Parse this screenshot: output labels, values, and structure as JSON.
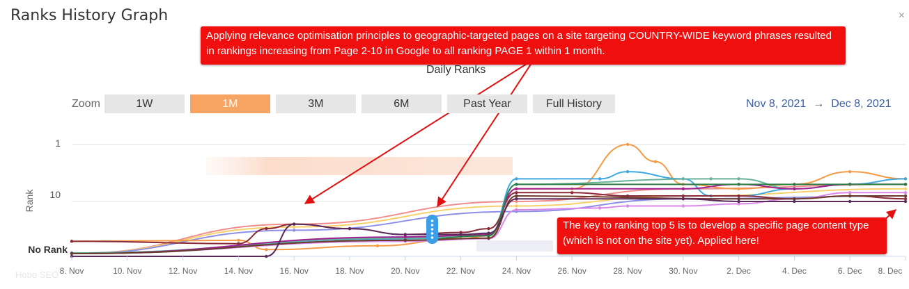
{
  "header": {
    "title": "Ranks History Graph",
    "close_icon": "close-icon"
  },
  "chart": {
    "subtitle": "Daily Ranks"
  },
  "zoom": {
    "label": "Zoom",
    "buttons": [
      "1W",
      "1M",
      "3M",
      "6M",
      "Past Year",
      "Full History"
    ],
    "active": "1M"
  },
  "range": {
    "start": "Nov 8, 2021",
    "arrow": "→",
    "end": "Dec 8, 2021"
  },
  "annotations": {
    "top": "Applying relevance optimisation principles to geographic-targeted pages on a site targeting COUNTRY-WIDE keyword phrases resulted in rankings increasing from Page 2-10 in Google to all ranking PAGE 1 within 1 month.",
    "bottom": "The key to ranking top 5 is to develop a specific page content type (which is not on the site yet). Applied here!"
  },
  "watermark": "Hobo SEO",
  "colors": {
    "annotation_bg": "#ef0f0f",
    "active_zoom": "#f7a462",
    "range_text": "#3d5fa8"
  },
  "chart_data": {
    "type": "line",
    "title": "Daily Ranks",
    "ylabel": "Rank",
    "y_scale": "log-inverted",
    "y_ticks": [
      "1",
      "10",
      "No Rank"
    ],
    "x_ticks": [
      "8. Nov",
      "10. Nov",
      "12. Nov",
      "14. Nov",
      "16. Nov",
      "18. Nov",
      "20. Nov",
      "22. Nov",
      "24. Nov",
      "26. Nov",
      "28. Nov",
      "30. Nov",
      "2. Dec",
      "4. Dec",
      "6. Dec",
      "8. Dec"
    ],
    "x_start": "2021-11-08",
    "x_end": "2021-12-08",
    "series": [
      {
        "color": "#f08c8c",
        "points": [
          [
            "2021-11-08",
            90
          ],
          [
            "2021-11-16",
            25
          ],
          [
            "2021-11-24",
            10
          ],
          [
            "2021-11-30",
            6
          ],
          [
            "2021-12-08",
            5
          ]
        ]
      },
      {
        "color": "#f7d06b",
        "points": [
          [
            "2021-11-08",
            90
          ],
          [
            "2021-11-16",
            28
          ],
          [
            "2021-11-24",
            12
          ],
          [
            "2021-11-30",
            8
          ],
          [
            "2021-12-08",
            6
          ]
        ]
      },
      {
        "color": "#8d8ee6",
        "points": [
          [
            "2021-11-08",
            90
          ],
          [
            "2021-11-16",
            32
          ],
          [
            "2021-11-24",
            15
          ],
          [
            "2021-11-30",
            9
          ],
          [
            "2021-12-08",
            8
          ]
        ]
      },
      {
        "color": "#f49a45",
        "points": [
          [
            "2021-11-08",
            50
          ],
          [
            "2021-11-14",
            48
          ],
          [
            "2021-11-15",
            70
          ],
          [
            "2021-11-19",
            60
          ],
          [
            "2021-11-22",
            45
          ],
          [
            "2021-11-23",
            40
          ],
          [
            "2021-11-24",
            6
          ],
          [
            "2021-11-26",
            6
          ],
          [
            "2021-11-28",
            1
          ],
          [
            "2021-11-29",
            2
          ],
          [
            "2021-11-30",
            5
          ],
          [
            "2021-12-02",
            6
          ],
          [
            "2021-12-04",
            5
          ],
          [
            "2021-12-06",
            3
          ],
          [
            "2021-12-08",
            4
          ]
        ]
      },
      {
        "color": "#40a8e0",
        "points": [
          [
            "2021-11-08",
            80
          ],
          [
            "2021-11-20",
            45
          ],
          [
            "2021-11-23",
            40
          ],
          [
            "2021-11-24",
            4
          ],
          [
            "2021-11-27",
            4
          ],
          [
            "2021-11-28",
            3
          ],
          [
            "2021-11-30",
            4
          ],
          [
            "2021-12-01",
            8
          ],
          [
            "2021-12-02",
            8
          ],
          [
            "2021-12-04",
            6
          ],
          [
            "2021-12-06",
            5
          ],
          [
            "2021-12-08",
            4
          ]
        ]
      },
      {
        "color": "#66b39a",
        "points": [
          [
            "2021-11-08",
            80
          ],
          [
            "2021-11-20",
            44
          ],
          [
            "2021-11-23",
            40
          ],
          [
            "2021-11-24",
            5
          ],
          [
            "2021-12-01",
            4
          ],
          [
            "2021-12-02",
            4
          ],
          [
            "2021-12-04",
            6
          ],
          [
            "2021-12-06",
            5
          ],
          [
            "2021-12-08",
            5
          ]
        ]
      },
      {
        "color": "#8a2b3a",
        "points": [
          [
            "2021-11-08",
            50
          ],
          [
            "2021-11-14",
            55
          ],
          [
            "2021-11-15",
            30
          ],
          [
            "2021-11-16",
            25
          ],
          [
            "2021-11-18",
            30
          ],
          [
            "2021-11-20",
            38
          ],
          [
            "2021-11-22",
            35
          ],
          [
            "2021-11-23",
            30
          ],
          [
            "2021-11-24",
            7
          ],
          [
            "2021-11-26",
            7
          ],
          [
            "2021-11-28",
            8
          ],
          [
            "2021-11-30",
            8
          ],
          [
            "2021-12-02",
            8
          ],
          [
            "2021-12-04",
            9
          ],
          [
            "2021-12-06",
            8
          ],
          [
            "2021-12-08",
            9
          ]
        ]
      },
      {
        "color": "#a02090",
        "points": [
          [
            "2021-11-08",
            90
          ],
          [
            "2021-11-20",
            42
          ],
          [
            "2021-11-23",
            38
          ],
          [
            "2021-11-24",
            6
          ],
          [
            "2021-11-30",
            6
          ],
          [
            "2021-12-02",
            5
          ],
          [
            "2021-12-04",
            6
          ],
          [
            "2021-12-06",
            5
          ],
          [
            "2021-12-08",
            5
          ]
        ]
      },
      {
        "color": "#d888e8",
        "points": [
          [
            "2021-11-08",
            90
          ],
          [
            "2021-11-20",
            50
          ],
          [
            "2021-11-23",
            45
          ],
          [
            "2021-11-24",
            14
          ],
          [
            "2021-11-27",
            13
          ],
          [
            "2021-11-28",
            12
          ],
          [
            "2021-11-30",
            12
          ],
          [
            "2021-12-02",
            11
          ],
          [
            "2021-12-04",
            9
          ],
          [
            "2021-12-06",
            7
          ],
          [
            "2021-12-08",
            7
          ]
        ]
      },
      {
        "color": "#2e7d45",
        "points": [
          [
            "2021-11-08",
            85
          ],
          [
            "2021-11-20",
            48
          ],
          [
            "2021-11-23",
            40
          ],
          [
            "2021-11-24",
            5
          ],
          [
            "2021-12-02",
            5
          ],
          [
            "2021-12-04",
            5
          ],
          [
            "2021-12-06",
            5
          ],
          [
            "2021-12-08",
            5
          ]
        ]
      },
      {
        "color": "#6b3a2a",
        "points": [
          [
            "2021-11-08",
            90
          ],
          [
            "2021-11-20",
            48
          ],
          [
            "2021-11-23",
            44
          ],
          [
            "2021-11-24",
            8
          ],
          [
            "2021-12-02",
            9
          ],
          [
            "2021-12-04",
            9
          ],
          [
            "2021-12-06",
            8
          ],
          [
            "2021-12-08",
            8
          ]
        ]
      },
      {
        "color": "#5a2a5a",
        "points": [
          [
            "2021-11-08",
            "No Rank"
          ],
          [
            "2021-11-15",
            "No Rank"
          ],
          [
            "2021-11-16",
            25
          ],
          [
            "2021-11-18",
            30
          ],
          [
            "2021-11-20",
            38
          ],
          [
            "2021-11-22",
            38
          ],
          [
            "2021-11-23",
            36
          ],
          [
            "2021-11-24",
            9
          ],
          [
            "2021-11-30",
            9
          ],
          [
            "2021-12-02",
            10
          ],
          [
            "2021-12-04",
            10
          ],
          [
            "2021-12-06",
            10
          ],
          [
            "2021-12-08",
            10
          ]
        ]
      }
    ]
  }
}
